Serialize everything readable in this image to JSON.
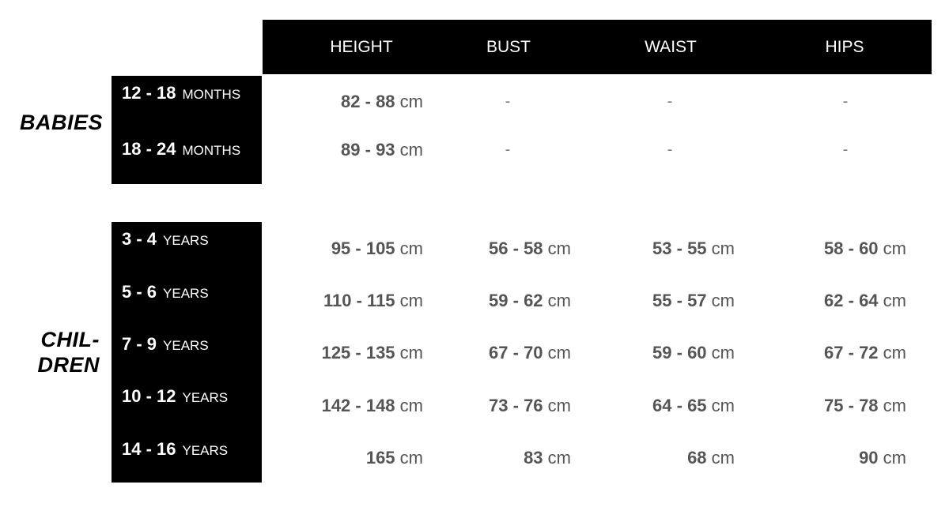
{
  "columns": [
    "HEIGHT",
    "BUST",
    "WAIST",
    "HIPS"
  ],
  "groups": [
    {
      "name": "BABIES",
      "rows": [
        {
          "range": "12 - 18",
          "unit": "MONTHS",
          "values": [
            "82 - 88",
            "-",
            "-",
            "-"
          ]
        },
        {
          "range": "18 - 24",
          "unit": "MONTHS",
          "values": [
            "89 - 93",
            "-",
            "-",
            "-"
          ]
        }
      ]
    },
    {
      "name_line1": "CHIL-",
      "name_line2": "DREN",
      "rows": [
        {
          "range": "3 - 4",
          "unit": "YEARS",
          "values": [
            "95 - 105",
            "56 - 58",
            "53 - 55",
            "58 - 60"
          ]
        },
        {
          "range": "5 - 6",
          "unit": "YEARS",
          "values": [
            "110 - 115",
            "59 - 62",
            "55 - 57",
            "62 - 64"
          ]
        },
        {
          "range": "7 - 9",
          "unit": "YEARS",
          "values": [
            "125 - 135",
            "67 - 70",
            "59 - 60",
            "67 - 72"
          ]
        },
        {
          "range": "10 - 12",
          "unit": "YEARS",
          "values": [
            "142 - 148",
            "73 - 76",
            "64 - 65",
            "75 - 78"
          ]
        },
        {
          "range": "14 - 16",
          "unit": "YEARS",
          "values": [
            "165",
            "83",
            "68",
            "90"
          ]
        }
      ]
    }
  ],
  "value_unit": "cm"
}
